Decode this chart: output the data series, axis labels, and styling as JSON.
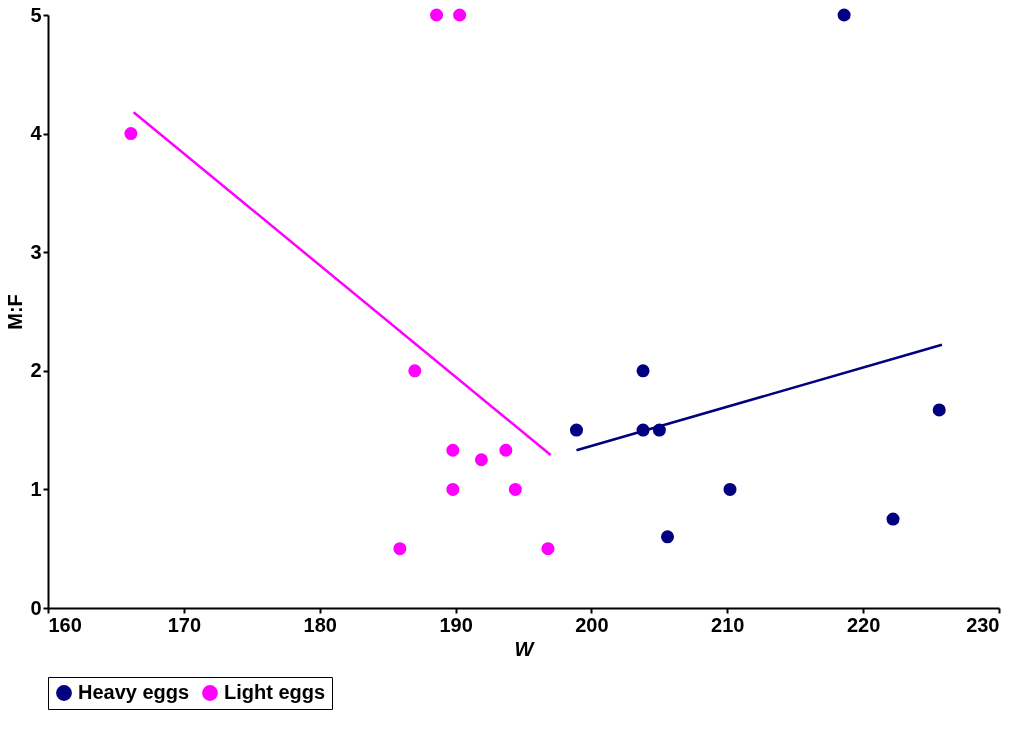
{
  "chart_data": {
    "type": "scatter",
    "xlabel": "W",
    "ylabel": "M:F",
    "xlim": [
      160,
      230
    ],
    "xticks": [
      160,
      170,
      180,
      190,
      200,
      210,
      220,
      230
    ],
    "ylim": [
      0,
      5
    ],
    "yticks": [
      0,
      1,
      2,
      3,
      4,
      5
    ],
    "grid": false,
    "legend": "bottom",
    "series": [
      {
        "name": "Heavy eggs",
        "color": "#000080",
        "marker": "circle",
        "x": [
          198.9,
          203.8,
          203.8,
          205.0,
          205.6,
          210.2,
          218.6,
          222.2,
          225.6
        ],
        "values": [
          1.5,
          2.0,
          1.5,
          1.5,
          0.6,
          1.0,
          5.0,
          0.75,
          1.67
        ]
      },
      {
        "name": "Light eggs",
        "color": "#ff00ff",
        "marker": "circle",
        "x": [
          166.1,
          188.6,
          190.3,
          187.0,
          185.9,
          189.8,
          189.8,
          191.9,
          193.7,
          194.4,
          196.8
        ],
        "values": [
          4.0,
          5.0,
          5.0,
          2.0,
          0.5,
          1.33,
          1.0,
          1.25,
          1.33,
          1.0,
          0.5
        ]
      },
      {
        "type": "line",
        "color": "#ff00ff",
        "marker": "none",
        "x": [
          166.3,
          197.0
        ],
        "values": [
          4.18,
          1.29
        ]
      },
      {
        "type": "line",
        "color": "#000080",
        "marker": "none",
        "x": [
          198.9,
          225.8
        ],
        "values": [
          1.33,
          2.22
        ]
      }
    ]
  }
}
